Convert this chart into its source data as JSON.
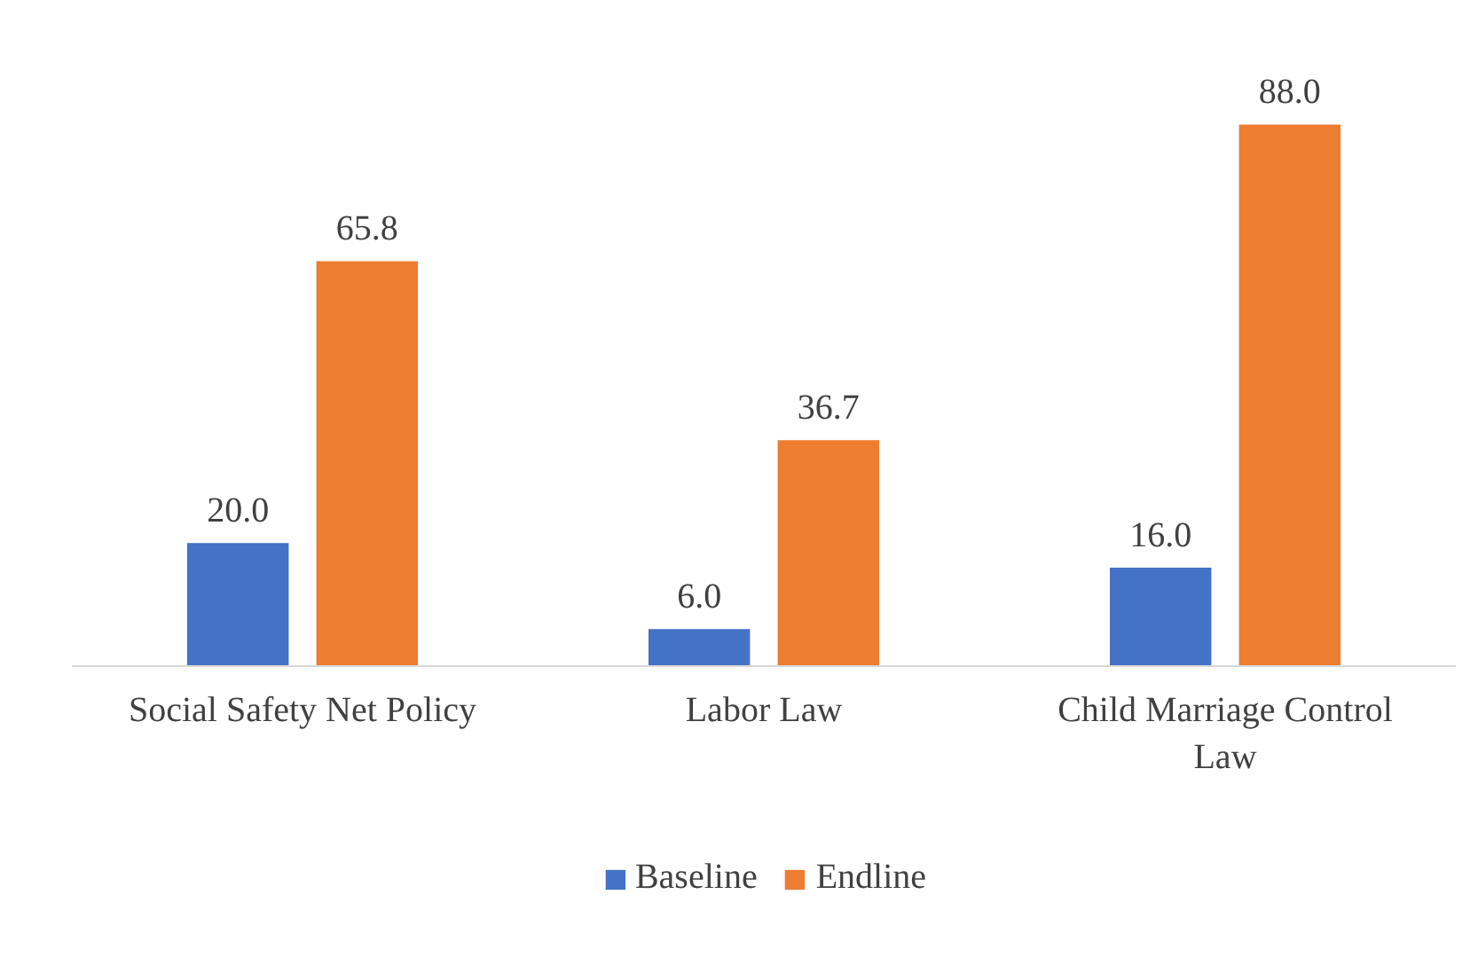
{
  "chart_data": {
    "type": "bar",
    "categories": [
      "Social Safety Net Policy",
      "Labor Law",
      "Child Marriage Control Law"
    ],
    "series": [
      {
        "name": "Baseline",
        "color": "#4472c4",
        "values": [
          20.0,
          6.0,
          16.0
        ],
        "value_labels": [
          "20.0",
          "6.0",
          "16.0"
        ]
      },
      {
        "name": "Endline",
        "color": "#ed7d31",
        "values": [
          65.8,
          36.7,
          88.0
        ],
        "value_labels": [
          "65.8",
          "36.7",
          "88.0"
        ]
      }
    ],
    "legend": "bottom"
  }
}
